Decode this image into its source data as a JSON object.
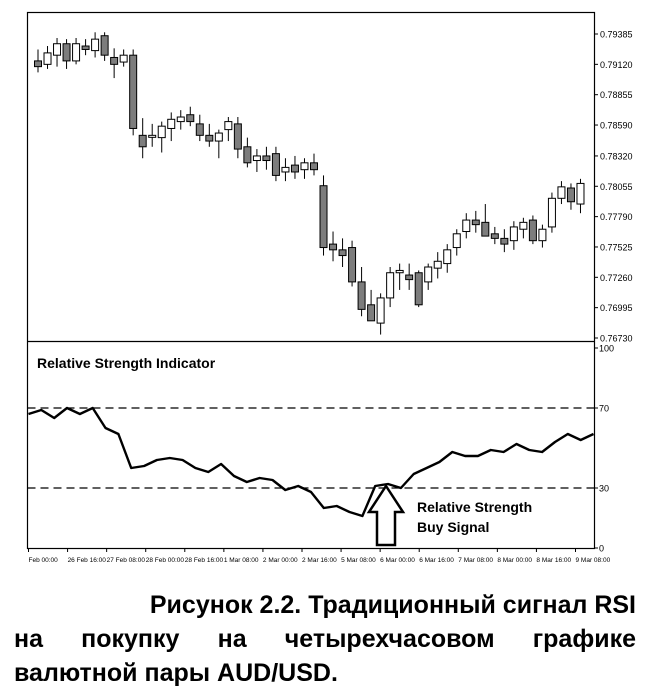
{
  "chart_data": [
    {
      "type": "candlestick",
      "title": "",
      "yticks": [
        "0.79385",
        "0.79120",
        "0.78855",
        "0.78590",
        "0.78320",
        "0.78055",
        "0.77790",
        "0.77525",
        "0.77260",
        "0.76995",
        "0.76730"
      ],
      "ylim": [
        0.7673,
        0.79385
      ],
      "candles": [
        {
          "o": 0.7915,
          "h": 0.7925,
          "l": 0.7905,
          "c": 0.791
        },
        {
          "o": 0.7912,
          "h": 0.7928,
          "l": 0.7908,
          "c": 0.7922
        },
        {
          "o": 0.792,
          "h": 0.7935,
          "l": 0.791,
          "c": 0.793
        },
        {
          "o": 0.793,
          "h": 0.7934,
          "l": 0.7908,
          "c": 0.7915
        },
        {
          "o": 0.7915,
          "h": 0.7935,
          "l": 0.7912,
          "c": 0.793
        },
        {
          "o": 0.7928,
          "h": 0.7934,
          "l": 0.792,
          "c": 0.7925
        },
        {
          "o": 0.7924,
          "h": 0.794,
          "l": 0.7918,
          "c": 0.7934
        },
        {
          "o": 0.7937,
          "h": 0.794,
          "l": 0.7915,
          "c": 0.792
        },
        {
          "o": 0.7918,
          "h": 0.7926,
          "l": 0.79,
          "c": 0.7912
        },
        {
          "o": 0.7914,
          "h": 0.7925,
          "l": 0.791,
          "c": 0.792
        },
        {
          "o": 0.792,
          "h": 0.7925,
          "l": 0.785,
          "c": 0.7856
        },
        {
          "o": 0.785,
          "h": 0.7865,
          "l": 0.783,
          "c": 0.784
        },
        {
          "o": 0.785,
          "h": 0.786,
          "l": 0.784,
          "c": 0.785
        },
        {
          "o": 0.7848,
          "h": 0.7862,
          "l": 0.7835,
          "c": 0.7858
        },
        {
          "o": 0.7856,
          "h": 0.787,
          "l": 0.7845,
          "c": 0.7864
        },
        {
          "o": 0.7862,
          "h": 0.7872,
          "l": 0.7855,
          "c": 0.7866
        },
        {
          "o": 0.7868,
          "h": 0.7875,
          "l": 0.7858,
          "c": 0.7862
        },
        {
          "o": 0.786,
          "h": 0.7868,
          "l": 0.7845,
          "c": 0.785
        },
        {
          "o": 0.785,
          "h": 0.786,
          "l": 0.784,
          "c": 0.7845
        },
        {
          "o": 0.7845,
          "h": 0.7855,
          "l": 0.783,
          "c": 0.7852
        },
        {
          "o": 0.7855,
          "h": 0.7866,
          "l": 0.7845,
          "c": 0.7862
        },
        {
          "o": 0.786,
          "h": 0.7866,
          "l": 0.783,
          "c": 0.7838
        },
        {
          "o": 0.784,
          "h": 0.7848,
          "l": 0.7822,
          "c": 0.7826
        },
        {
          "o": 0.7828,
          "h": 0.7838,
          "l": 0.7818,
          "c": 0.7832
        },
        {
          "o": 0.7832,
          "h": 0.784,
          "l": 0.782,
          "c": 0.7828
        },
        {
          "o": 0.7834,
          "h": 0.784,
          "l": 0.781,
          "c": 0.7815
        },
        {
          "o": 0.7818,
          "h": 0.783,
          "l": 0.781,
          "c": 0.7822
        },
        {
          "o": 0.7824,
          "h": 0.7832,
          "l": 0.7812,
          "c": 0.7818
        },
        {
          "o": 0.782,
          "h": 0.783,
          "l": 0.7812,
          "c": 0.7826
        },
        {
          "o": 0.7826,
          "h": 0.7834,
          "l": 0.7815,
          "c": 0.782
        },
        {
          "o": 0.7806,
          "h": 0.7815,
          "l": 0.7745,
          "c": 0.7752
        },
        {
          "o": 0.7755,
          "h": 0.7766,
          "l": 0.774,
          "c": 0.775
        },
        {
          "o": 0.775,
          "h": 0.776,
          "l": 0.7735,
          "c": 0.7745
        },
        {
          "o": 0.7752,
          "h": 0.7758,
          "l": 0.7718,
          "c": 0.7722
        },
        {
          "o": 0.7722,
          "h": 0.7735,
          "l": 0.7692,
          "c": 0.7698
        },
        {
          "o": 0.7702,
          "h": 0.7715,
          "l": 0.769,
          "c": 0.7688
        },
        {
          "o": 0.7686,
          "h": 0.7712,
          "l": 0.7676,
          "c": 0.7708
        },
        {
          "o": 0.7708,
          "h": 0.7735,
          "l": 0.77,
          "c": 0.773
        },
        {
          "o": 0.773,
          "h": 0.7738,
          "l": 0.7715,
          "c": 0.7732
        },
        {
          "o": 0.7728,
          "h": 0.7738,
          "l": 0.7715,
          "c": 0.7724
        },
        {
          "o": 0.773,
          "h": 0.7732,
          "l": 0.77,
          "c": 0.7702
        },
        {
          "o": 0.7722,
          "h": 0.7738,
          "l": 0.7715,
          "c": 0.7735
        },
        {
          "o": 0.7734,
          "h": 0.7748,
          "l": 0.7725,
          "c": 0.774
        },
        {
          "o": 0.7738,
          "h": 0.7755,
          "l": 0.773,
          "c": 0.775
        },
        {
          "o": 0.7752,
          "h": 0.7768,
          "l": 0.7745,
          "c": 0.7764
        },
        {
          "o": 0.7766,
          "h": 0.7782,
          "l": 0.776,
          "c": 0.7776
        },
        {
          "o": 0.7776,
          "h": 0.7784,
          "l": 0.7765,
          "c": 0.7772
        },
        {
          "o": 0.7774,
          "h": 0.779,
          "l": 0.7764,
          "c": 0.7762
        },
        {
          "o": 0.7764,
          "h": 0.777,
          "l": 0.7755,
          "c": 0.776
        },
        {
          "o": 0.776,
          "h": 0.7768,
          "l": 0.7748,
          "c": 0.7755
        },
        {
          "o": 0.7758,
          "h": 0.7775,
          "l": 0.775,
          "c": 0.777
        },
        {
          "o": 0.7768,
          "h": 0.7778,
          "l": 0.776,
          "c": 0.7774
        },
        {
          "o": 0.7776,
          "h": 0.778,
          "l": 0.7755,
          "c": 0.7758
        },
        {
          "o": 0.7758,
          "h": 0.7772,
          "l": 0.7752,
          "c": 0.7768
        },
        {
          "o": 0.777,
          "h": 0.78,
          "l": 0.7765,
          "c": 0.7795
        },
        {
          "o": 0.7795,
          "h": 0.781,
          "l": 0.779,
          "c": 0.7805
        },
        {
          "o": 0.7804,
          "h": 0.7808,
          "l": 0.7785,
          "c": 0.7792
        },
        {
          "o": 0.779,
          "h": 0.7812,
          "l": 0.7782,
          "c": 0.7808
        }
      ]
    },
    {
      "type": "line",
      "title": "Relative Strength Indicator",
      "ylim": [
        0,
        100
      ],
      "yticks": [
        "100",
        "70",
        "30",
        "0"
      ],
      "reference_lines": [
        70,
        30
      ],
      "xticks": [
        "Feb 00:00",
        "26 Feb 16:00",
        "27 Feb 08:00",
        "28 Feb 00:00",
        "28 Feb 16:00",
        "1 Mar 08:00",
        "2 Mar 00:00",
        "2 Mar 16:00",
        "5 Mar 08:00",
        "6 Mar 00:00",
        "6 Mar 16:00",
        "7 Mar 08:00",
        "8 Mar 00:00",
        "8 Mar 16:00",
        "9 Mar 08:00"
      ],
      "series": [
        {
          "values": [
            67,
            69,
            65,
            70,
            67,
            70,
            60,
            57,
            40,
            41,
            44,
            45,
            44,
            40,
            38,
            42,
            36,
            33,
            35,
            34,
            29,
            31,
            28,
            20,
            21,
            18,
            16,
            31,
            32,
            30,
            37,
            40,
            43,
            48,
            46,
            46,
            49,
            48,
            52,
            49,
            48,
            53,
            57,
            54,
            57
          ]
        }
      ],
      "annotation": {
        "line1": "Relative Strength",
        "line2": "Buy Signal"
      }
    }
  ],
  "caption": {
    "line1": "Рисунок 2.2. Традиционный сигнал RSI",
    "line2": "на покупку на четырехчасовом графике",
    "line3": "валютной пары AUD/USD."
  }
}
